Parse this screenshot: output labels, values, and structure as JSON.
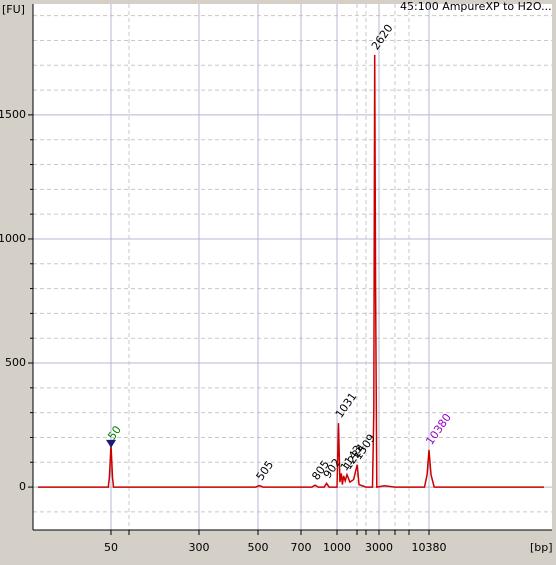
{
  "chart_data": {
    "type": "line",
    "title": "45:100 AmpureXP to H2O...",
    "ylabel": "[FU]",
    "xlabel": "[bp]",
    "xscale": "ladder",
    "xticks": [
      50,
      300,
      500,
      700,
      1000,
      3000,
      10380
    ],
    "xminor": [
      100,
      1500,
      2000,
      4000,
      7000
    ],
    "ylim": [
      -173,
      1947
    ],
    "yticks": [
      0,
      500,
      1000,
      1500
    ],
    "grid": true,
    "series": [
      {
        "name": "45:100 AmpureXP to H2O...",
        "color": "#cc0000",
        "x": [
          3,
          45,
          47,
          50,
          53,
          55,
          490,
          505,
          520,
          780,
          805,
          830,
          880,
          902,
          925,
          1000,
          1031,
          1060,
          1090,
          1115,
          1143,
          1180,
          1224,
          1300,
          1400,
          1509,
          1600,
          2000,
          2450,
          2550,
          2620,
          2700,
          2800,
          3300,
          4000,
          9500,
          10000,
          10380,
          10800,
          11500,
          100000
        ],
        "values": [
          0,
          0,
          40,
          170,
          40,
          0,
          0,
          6,
          0,
          0,
          8,
          0,
          0,
          15,
          0,
          0,
          258,
          20,
          55,
          10,
          45,
          25,
          50,
          20,
          30,
          90,
          10,
          0,
          0,
          300,
          1742,
          800,
          0,
          5,
          0,
          0,
          50,
          150,
          50,
          0,
          0
        ]
      }
    ],
    "peaks": [
      {
        "size": 50,
        "color": "#008000"
      },
      {
        "size": 505,
        "color": "#000000"
      },
      {
        "size": 805,
        "color": "#000000"
      },
      {
        "size": 902,
        "color": "#000000"
      },
      {
        "size": 1031,
        "color": "#000000"
      },
      {
        "size": 1143,
        "color": "#000000"
      },
      {
        "size": 1224,
        "color": "#000000"
      },
      {
        "size": 1509,
        "color": "#000000"
      },
      {
        "size": 2620,
        "color": "#000000"
      },
      {
        "size": 10380,
        "color": "#9900cc"
      }
    ]
  }
}
